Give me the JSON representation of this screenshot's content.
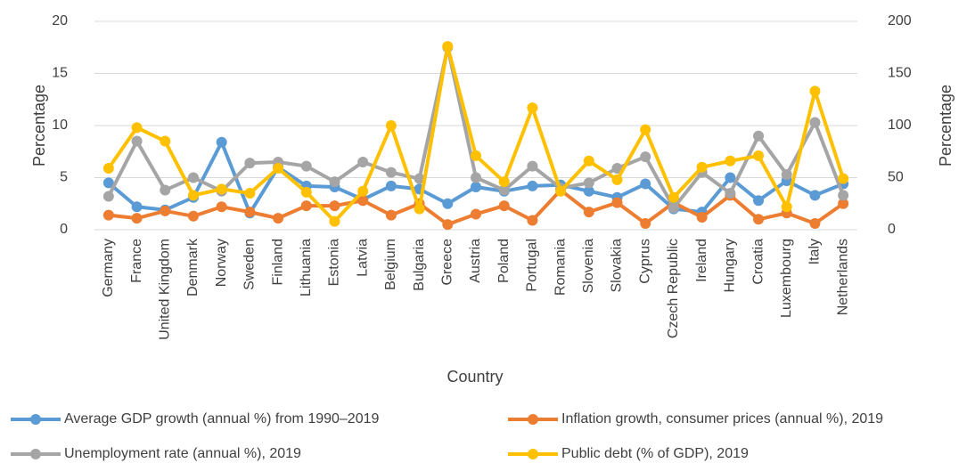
{
  "chart_data": {
    "type": "line",
    "x_label": "Country",
    "y_label": "Percentage",
    "y2_label": "Percentage",
    "categories": [
      "Germany",
      "France",
      "United Kingdom",
      "Denmark",
      "Norway",
      "Sweden",
      "Finland",
      "Lithuania",
      "Estonia",
      "Latvia",
      "Belgium",
      "Bulgaria",
      "Greece",
      "Austria",
      "Poland",
      "Portugal",
      "Romania",
      "Slovenia",
      "Slovakia",
      "Cyprus",
      "Czech Republic",
      "Ireland",
      "Hungary",
      "Croatia",
      "Luxembourg",
      "Italy",
      "Netherlands"
    ],
    "series": [
      {
        "name": "Average GDP growth (annual %) from 1990–2019",
        "color": "#5b9bd5",
        "values": [
          4.5,
          2.2,
          1.9,
          3.1,
          8.4,
          1.6,
          6.0,
          4.2,
          4.1,
          2.9,
          4.2,
          3.9,
          2.5,
          4.1,
          3.7,
          4.2,
          4.3,
          3.7,
          3.1,
          4.4,
          2.0,
          1.7,
          5.0,
          2.8,
          4.7,
          3.3,
          4.4
        ]
      },
      {
        "name": "Inflation growth, consumer prices (annual %), 2019",
        "color": "#ed7d31",
        "values": [
          1.4,
          1.1,
          1.8,
          1.3,
          2.2,
          1.7,
          1.1,
          2.3,
          2.3,
          2.8,
          1.4,
          2.5,
          0.5,
          1.5,
          2.3,
          0.9,
          3.8,
          1.7,
          2.6,
          0.6,
          2.6,
          1.2,
          3.3,
          1.0,
          1.6,
          0.6,
          2.5
        ]
      },
      {
        "name": "Unemployment rate (annual %), 2019",
        "color": "#a5a5a5",
        "values": [
          3.2,
          8.5,
          3.8,
          5.0,
          3.7,
          6.4,
          6.5,
          6.1,
          4.6,
          6.5,
          5.5,
          4.9,
          17.5,
          5.0,
          3.8,
          6.1,
          4.0,
          4.5,
          5.9,
          7.0,
          2.1,
          5.5,
          3.5,
          9.0,
          5.3,
          10.3,
          3.3
        ]
      },
      {
        "name": "Public debt (% of GDP), 2019",
        "color": "#ffc000",
        "axis": "y2",
        "values": [
          59,
          98,
          85,
          33,
          39,
          35,
          59,
          36,
          8,
          37,
          100,
          20,
          176,
          71,
          46,
          117,
          37,
          66,
          48,
          96,
          31,
          60,
          66,
          71,
          22,
          133,
          49
        ]
      }
    ],
    "ylim": [
      0,
      20
    ],
    "yticks": [
      0,
      5,
      10,
      15,
      20
    ],
    "y2lim": [
      0,
      200
    ],
    "y2ticks": [
      0,
      50,
      100,
      150,
      200
    ],
    "grid": true,
    "legend": "bottom"
  }
}
